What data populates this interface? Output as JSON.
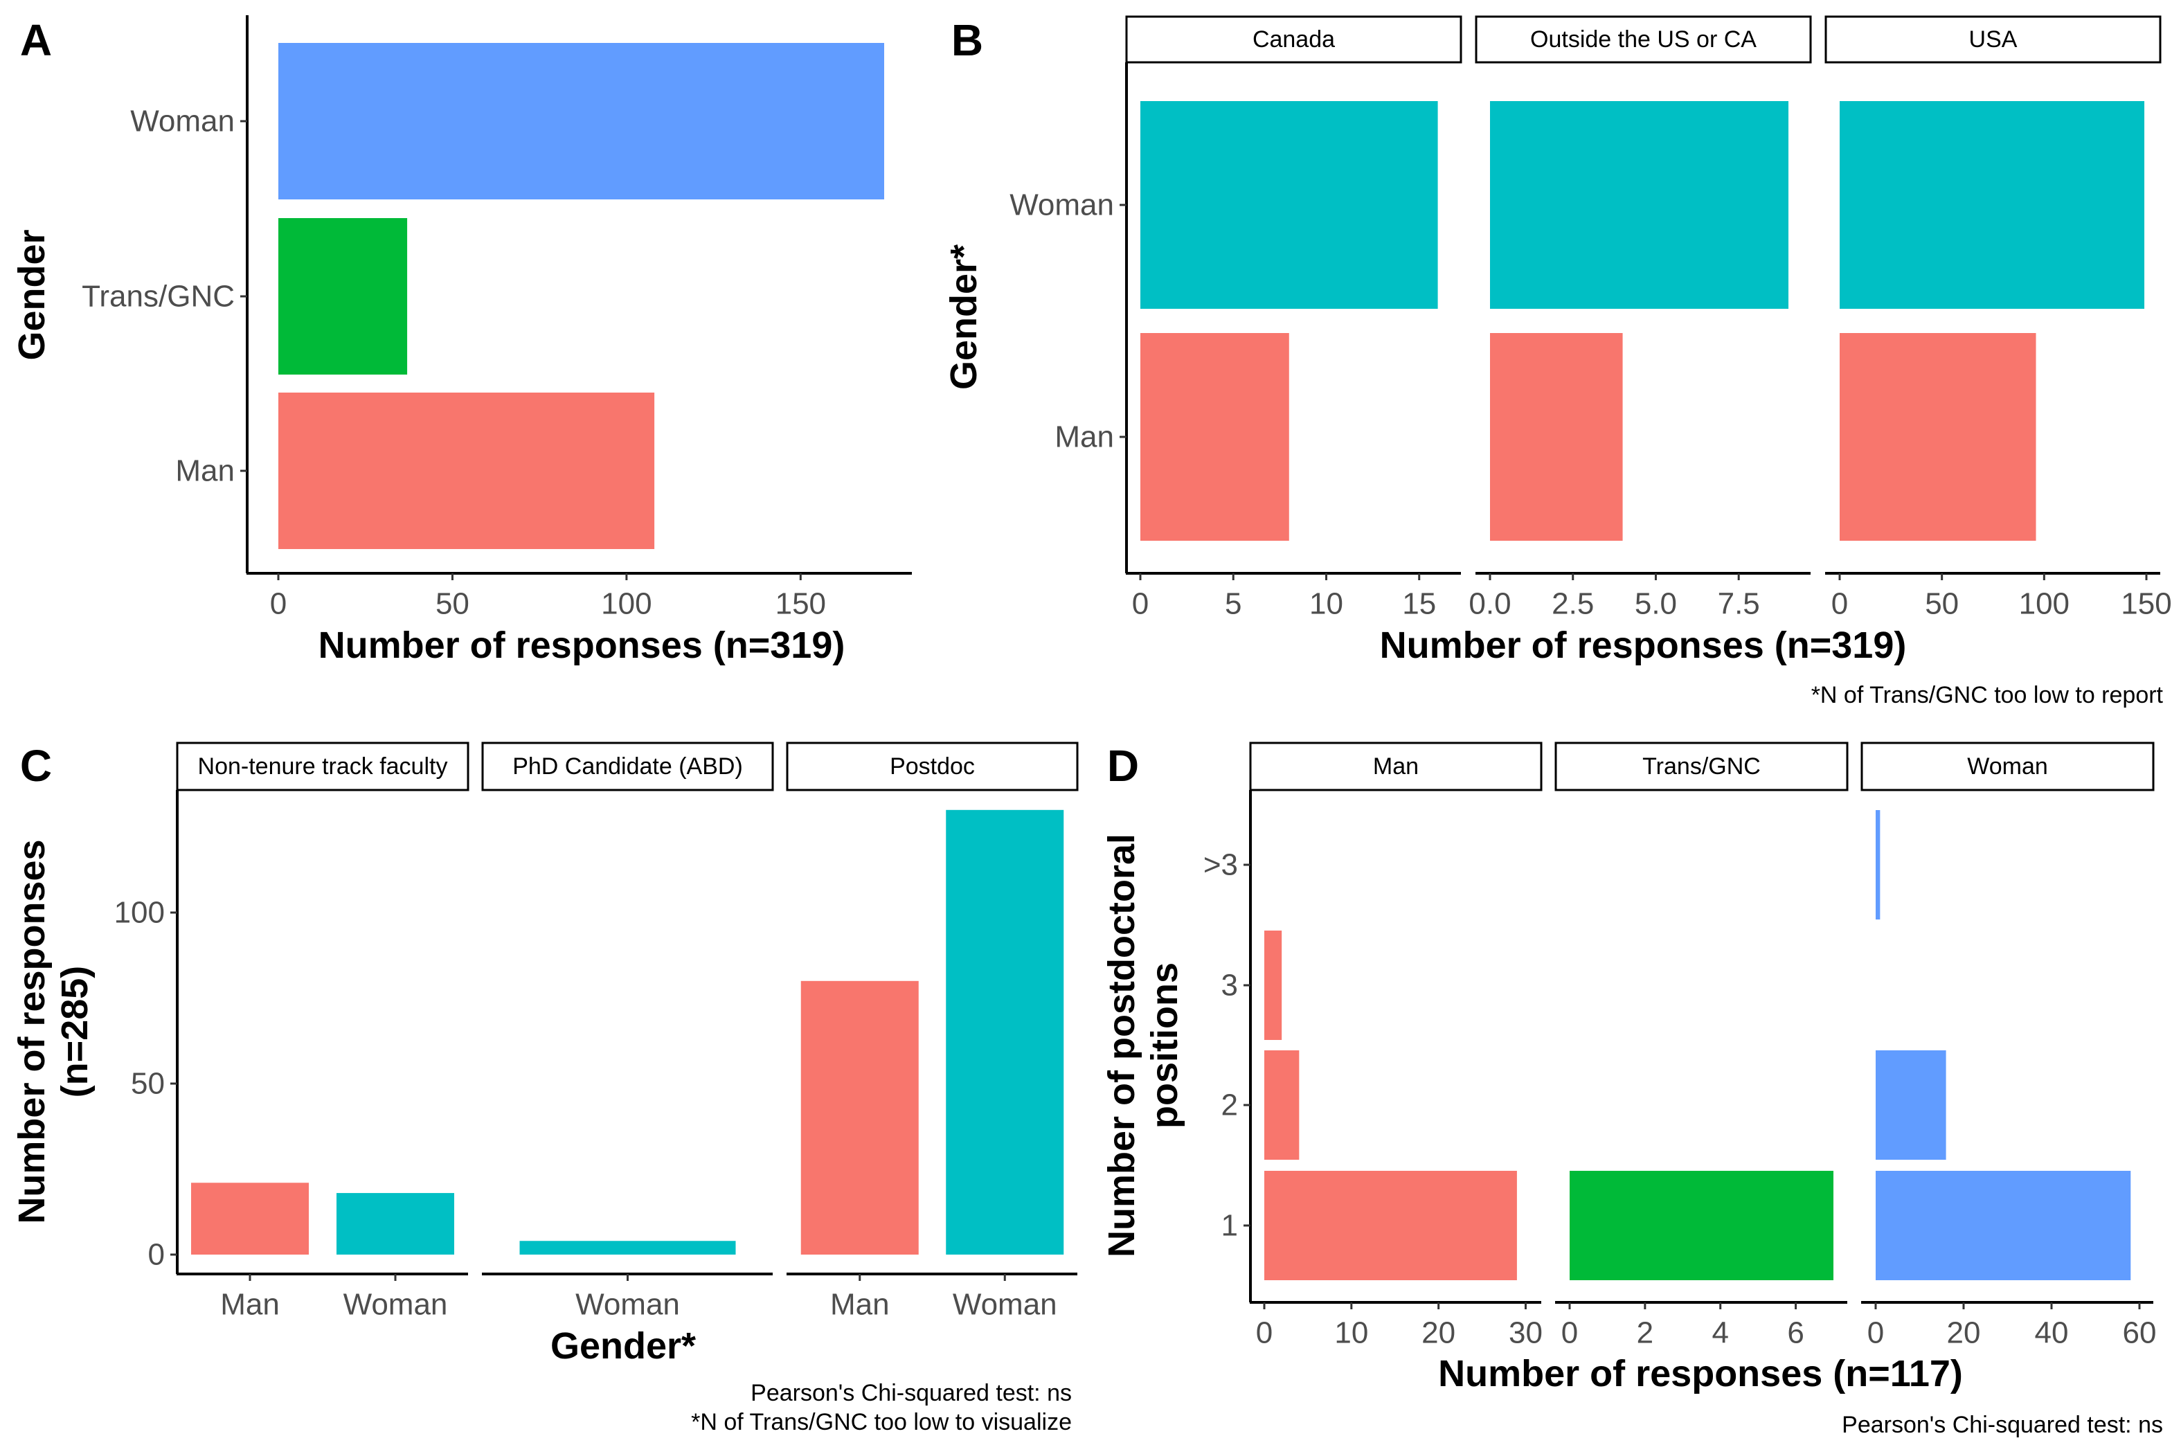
{
  "chart_data": [
    {
      "panel": "A",
      "type": "bar",
      "orientation": "horizontal",
      "categories": [
        "Woman",
        "Trans/GNC",
        "Man"
      ],
      "values": [
        174,
        37,
        108
      ],
      "colors": [
        "#619CFF",
        "#00BA38",
        "#F8766D"
      ],
      "xlabel": "Number of responses (n=319)",
      "ylabel": "Gender",
      "xlim": [
        0,
        183
      ],
      "xticks": [
        "0",
        "50",
        "100",
        "150"
      ]
    },
    {
      "panel": "B",
      "type": "bar",
      "orientation": "horizontal",
      "facets": [
        {
          "label": "Canada",
          "xlim": [
            0,
            16.5
          ],
          "xticks": [
            "0",
            "5",
            "10",
            "15"
          ],
          "values": [
            16,
            8
          ]
        },
        {
          "label": "Outside the US or CA",
          "xlim": [
            0,
            9.25
          ],
          "xticks": [
            "0.0",
            "2.5",
            "5.0",
            "7.5"
          ],
          "values": [
            9,
            4
          ]
        },
        {
          "label": "USA",
          "xlim": [
            0,
            150
          ],
          "xticks": [
            "0",
            "50",
            "100",
            "150"
          ],
          "values": [
            149,
            96
          ]
        }
      ],
      "categories": [
        "Woman",
        "Man"
      ],
      "colors": [
        "#00BFC4",
        "#F8766D"
      ],
      "xlabel": "Number of responses (n=319)",
      "ylabel": "Gender*",
      "caption": "*N of Trans/GNC too low to report"
    },
    {
      "panel": "C",
      "type": "bar",
      "orientation": "vertical",
      "facets": [
        {
          "label": "Non-tenure track faculty",
          "categories": [
            "Man",
            "Woman"
          ],
          "values": [
            21,
            18
          ],
          "colors": [
            "#F8766D",
            "#00BFC4"
          ]
        },
        {
          "label": "PhD Candidate (ABD)",
          "categories": [
            "Woman"
          ],
          "values": [
            4
          ],
          "colors": [
            "#00BFC4"
          ]
        },
        {
          "label": "Postdoc",
          "categories": [
            "Man",
            "Woman"
          ],
          "values": [
            80,
            130
          ],
          "colors": [
            "#F8766D",
            "#00BFC4"
          ]
        }
      ],
      "ylim": [
        -5,
        136
      ],
      "yticks": [
        "0",
        "50",
        "100"
      ],
      "xlabel": "Gender*",
      "ylabel": "Number of responses\n(n=285)",
      "caption": "Pearson's Chi-squared test: ns\n*N of Trans/GNC too low to visualize"
    },
    {
      "panel": "D",
      "type": "bar",
      "orientation": "horizontal",
      "categories": [
        "1",
        "2",
        "3",
        ">3"
      ],
      "facets": [
        {
          "label": "Man",
          "xlim": [
            0,
            30.2
          ],
          "xticks": [
            "0",
            "10",
            "20",
            "30"
          ],
          "values": [
            29,
            4,
            2,
            0
          ],
          "color": "#F8766D"
        },
        {
          "label": "Trans/GNC",
          "xlim": [
            0,
            7
          ],
          "xticks": [
            "0",
            "2",
            "4",
            "6"
          ],
          "values": [
            7,
            0,
            0,
            0
          ],
          "color": "#00BA38"
        },
        {
          "label": "Woman",
          "xlim": [
            0,
            60
          ],
          "xticks": [
            "0",
            "20",
            "40",
            "60"
          ],
          "values": [
            58,
            16,
            0,
            1
          ],
          "color": "#619CFF"
        }
      ],
      "xlabel": "Number of responses (n=117)",
      "ylabel": "Number of postdoctoral\npositions",
      "caption": "Pearson's Chi-squared test: ns"
    }
  ]
}
